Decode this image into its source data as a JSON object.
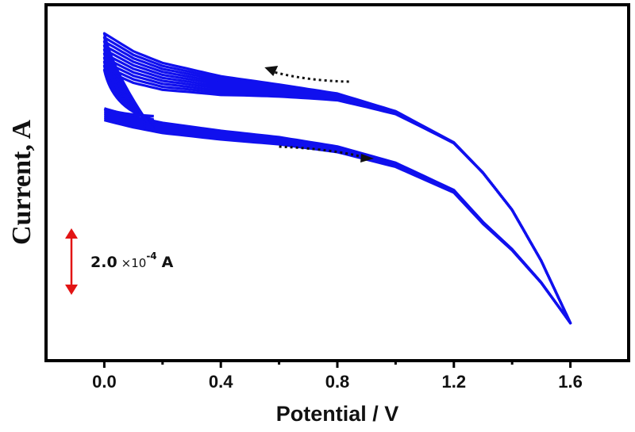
{
  "chart_data": {
    "type": "line",
    "title": "",
    "xlabel": "Potential / V",
    "ylabel": "Current, A",
    "xlim": [
      -0.2,
      1.8
    ],
    "ylim": [
      -6.9,
      3.8
    ],
    "y_units_note": "relative, x10^-4 A",
    "xticks": [
      0.0,
      0.4,
      0.8,
      1.2,
      1.6
    ],
    "xtick_labels": [
      "0.0",
      "0.4",
      "0.8",
      "1.2",
      "1.6"
    ],
    "minor_xticks": [
      -0.2,
      0.2,
      0.6,
      1.0,
      1.4,
      1.8
    ],
    "grid": false,
    "legend": "none",
    "line_color": "#1010ee",
    "cycles": 10,
    "series": [
      {
        "name": "forward scan (cycle envelope, lower)",
        "x": [
          0.0,
          0.1,
          0.2,
          0.4,
          0.6,
          0.8,
          1.0,
          1.2,
          1.3,
          1.4,
          1.5,
          1.6
        ],
        "y": [
          0.68,
          0.44,
          0.25,
          0.01,
          -0.18,
          -0.46,
          -0.95,
          -1.77,
          -2.73,
          -3.55,
          -4.55,
          -5.77
        ]
      },
      {
        "name": "reverse scan (cycle envelope, upper)",
        "x": [
          1.6,
          1.5,
          1.4,
          1.3,
          1.2,
          1.0,
          0.8,
          0.6,
          0.4,
          0.2,
          0.1,
          0.0
        ],
        "y": [
          -5.77,
          -3.9,
          -2.37,
          -1.25,
          -0.34,
          0.6,
          1.13,
          1.4,
          1.65,
          2.05,
          2.4,
          2.94
        ]
      }
    ],
    "annotations": {
      "scale_bar": {
        "value": "2.0",
        "multiplier": "×10",
        "exponent": "-4",
        "unit": "A",
        "span": 2.0,
        "color": "#e21414"
      },
      "arrow_reverse": {
        "direction": "left",
        "from_x": 0.84,
        "to_x": 0.55
      },
      "arrow_forward": {
        "direction": "right",
        "from_x": 0.6,
        "to_x": 0.92
      }
    }
  }
}
